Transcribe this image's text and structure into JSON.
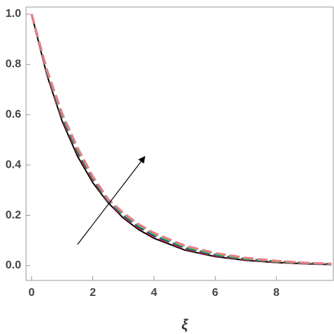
{
  "chart_data": {
    "type": "line",
    "x_label": "ξ",
    "x": [
      0,
      0.5,
      1,
      1.5,
      2,
      2.5,
      3,
      3.5,
      4,
      5,
      6,
      7,
      8,
      9,
      9.8
    ],
    "series": [
      {
        "color": "#000000",
        "dash": "solid",
        "values": [
          1,
          0.758,
          0.574,
          0.435,
          0.33,
          0.25,
          0.189,
          0.143,
          0.109,
          0.062,
          0.036,
          0.021,
          0.012,
          0.007,
          0.004
        ]
      },
      {
        "color": "#e0302a",
        "dash": "dashed",
        "values": [
          1,
          0.765,
          0.585,
          0.447,
          0.34,
          0.255,
          0.195,
          0.15,
          0.115,
          0.067,
          0.04,
          0.024,
          0.014,
          0.008,
          0.005
        ]
      },
      {
        "color": "#1f3fd0",
        "dash": "dashed",
        "values": [
          1,
          0.77,
          0.592,
          0.455,
          0.345,
          0.258,
          0.2,
          0.155,
          0.12,
          0.071,
          0.043,
          0.026,
          0.016,
          0.009,
          0.006
        ]
      },
      {
        "color": "#2fd02f",
        "dash": "dashed",
        "values": [
          1,
          0.775,
          0.598,
          0.462,
          0.35,
          0.262,
          0.205,
          0.16,
          0.125,
          0.075,
          0.046,
          0.028,
          0.017,
          0.01,
          0.007
        ]
      },
      {
        "color": "#f07a8a",
        "dash": "dashed",
        "values": [
          1,
          0.78,
          0.605,
          0.47,
          0.355,
          0.265,
          0.21,
          0.165,
          0.13,
          0.08,
          0.05,
          0.031,
          0.019,
          0.011,
          0.008
        ]
      }
    ],
    "xlim": [
      -0.18,
      9.86
    ],
    "ylim": [
      -0.059,
      1.028
    ],
    "xticks": [
      0,
      2,
      4,
      6,
      8
    ],
    "yticks": [
      {
        "value": 0,
        "label": "0.0"
      },
      {
        "value": 0.2,
        "label": "0.2"
      },
      {
        "value": 0.4,
        "label": "0.4"
      },
      {
        "value": 0.6,
        "label": "0.6"
      },
      {
        "value": 0.8,
        "label": "0.8"
      },
      {
        "value": 1.0,
        "label": "1.0"
      }
    ],
    "grid": false
  }
}
